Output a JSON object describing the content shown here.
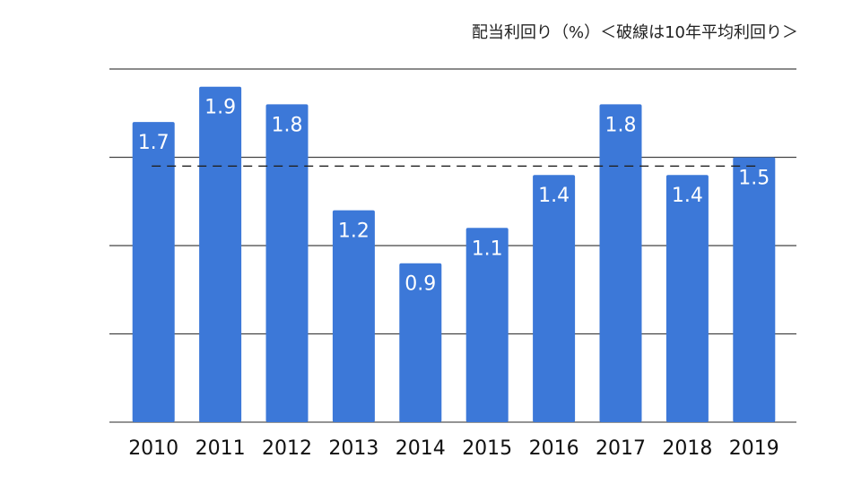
{
  "chart_data": {
    "type": "bar",
    "title": "配当利回り（%）＜破線は10年平均利回り＞",
    "categories": [
      "2010",
      "2011",
      "2012",
      "2013",
      "2014",
      "2015",
      "2016",
      "2017",
      "2018",
      "2019"
    ],
    "values": [
      1.7,
      1.9,
      1.8,
      1.2,
      0.9,
      1.1,
      1.4,
      1.8,
      1.4,
      1.5
    ],
    "value_labels": [
      "1.7",
      "1.9",
      "1.8",
      "1.2",
      "0.9",
      "1.1",
      "1.4",
      "1.8",
      "1.4",
      "1.5"
    ],
    "average": 1.45,
    "ylim": [
      0,
      2.0
    ],
    "y_gridlines": [
      0,
      0.5,
      1.0,
      1.5,
      2.0
    ],
    "grid": true,
    "y_tick_labels_shown": false,
    "bar_color": "#3c78d8",
    "bar_label_color": "#ffffff",
    "average_line_style": "dashed"
  }
}
